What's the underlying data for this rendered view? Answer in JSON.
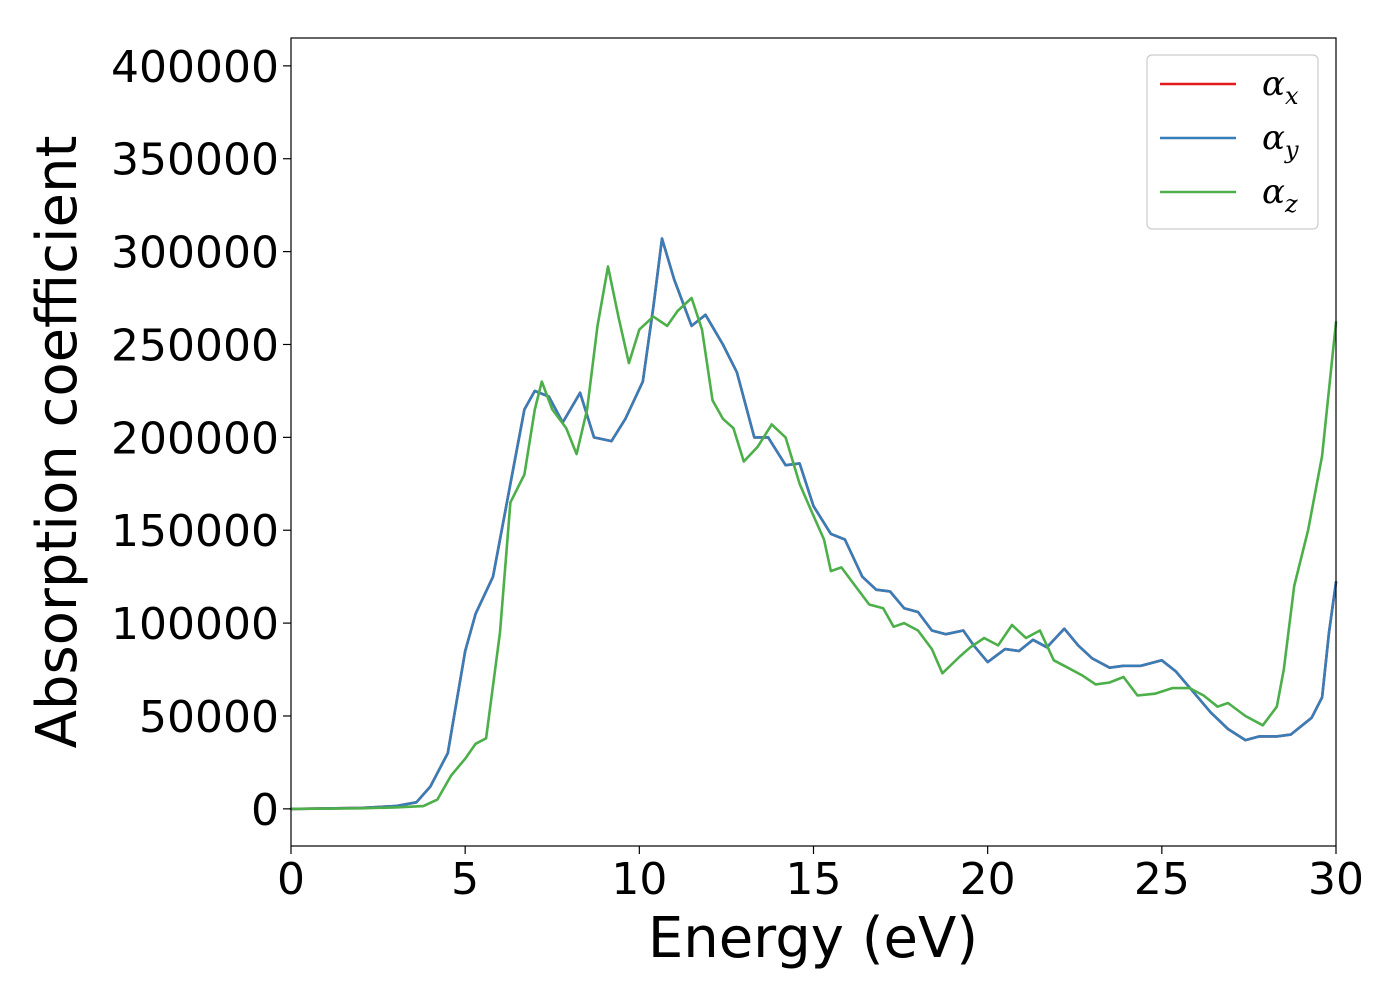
{
  "chart_data": {
    "type": "line",
    "xlabel": "Energy (eV)",
    "ylabel": "Absorption coefficient",
    "xlim": [
      0,
      30
    ],
    "ylim": [
      -20000,
      415000
    ],
    "xticks": [
      0,
      5,
      10,
      15,
      20,
      25,
      30
    ],
    "xtick_labels": [
      "0",
      "5",
      "10",
      "15",
      "20",
      "25",
      "30"
    ],
    "yticks": [
      0,
      50000,
      100000,
      150000,
      200000,
      250000,
      300000,
      350000,
      400000
    ],
    "ytick_labels": [
      "0",
      "50000",
      "100000",
      "150000",
      "200000",
      "250000",
      "300000",
      "350000",
      "400000"
    ],
    "grid": false,
    "legend_position": "top-right",
    "series": [
      {
        "name": "α",
        "subscript": "x",
        "color": "#e41a1c",
        "points": [
          [
            0,
            0
          ],
          [
            2,
            500
          ],
          [
            3,
            1500
          ],
          [
            3.6,
            3500
          ],
          [
            4,
            12000
          ],
          [
            4.5,
            30000
          ],
          [
            5,
            85000
          ],
          [
            5.3,
            105000
          ],
          [
            5.8,
            125000
          ],
          [
            6.3,
            175000
          ],
          [
            6.7,
            215000
          ],
          [
            7,
            225000
          ],
          [
            7.4,
            222000
          ],
          [
            7.8,
            208000
          ],
          [
            8.3,
            224000
          ],
          [
            8.7,
            200000
          ],
          [
            9.2,
            198000
          ],
          [
            9.6,
            210000
          ],
          [
            10.1,
            230000
          ],
          [
            10.4,
            270000
          ],
          [
            10.65,
            307000
          ],
          [
            11,
            285000
          ],
          [
            11.5,
            260000
          ],
          [
            11.9,
            266000
          ],
          [
            12.4,
            250000
          ],
          [
            12.8,
            235000
          ],
          [
            13.3,
            200000
          ],
          [
            13.7,
            200000
          ],
          [
            14.2,
            185000
          ],
          [
            14.6,
            186000
          ],
          [
            15,
            163000
          ],
          [
            15.5,
            148000
          ],
          [
            15.9,
            145000
          ],
          [
            16.4,
            125000
          ],
          [
            16.8,
            118000
          ],
          [
            17.2,
            117000
          ],
          [
            17.6,
            108000
          ],
          [
            18,
            106000
          ],
          [
            18.4,
            96000
          ],
          [
            18.8,
            94000
          ],
          [
            19.3,
            96000
          ],
          [
            19.6,
            88000
          ],
          [
            20,
            79000
          ],
          [
            20.5,
            86000
          ],
          [
            20.9,
            85000
          ],
          [
            21.3,
            91000
          ],
          [
            21.7,
            87000
          ],
          [
            22.2,
            97000
          ],
          [
            22.6,
            88000
          ],
          [
            23,
            81000
          ],
          [
            23.5,
            76000
          ],
          [
            23.9,
            77000
          ],
          [
            24.4,
            77000
          ],
          [
            25,
            80000
          ],
          [
            25.4,
            74000
          ],
          [
            25.9,
            63000
          ],
          [
            26.4,
            52000
          ],
          [
            26.9,
            43000
          ],
          [
            27.4,
            37000
          ],
          [
            27.8,
            39000
          ],
          [
            28.3,
            39000
          ],
          [
            28.7,
            40000
          ],
          [
            29.3,
            49000
          ],
          [
            29.6,
            60000
          ],
          [
            29.8,
            95000
          ],
          [
            30,
            122000
          ]
        ]
      },
      {
        "name": "α",
        "subscript": "y",
        "color": "#377eb8",
        "points": [
          [
            0,
            0
          ],
          [
            2,
            500
          ],
          [
            3,
            1500
          ],
          [
            3.6,
            3500
          ],
          [
            4,
            12000
          ],
          [
            4.5,
            30000
          ],
          [
            5,
            85000
          ],
          [
            5.3,
            105000
          ],
          [
            5.8,
            125000
          ],
          [
            6.3,
            175000
          ],
          [
            6.7,
            215000
          ],
          [
            7,
            225000
          ],
          [
            7.4,
            222000
          ],
          [
            7.8,
            208000
          ],
          [
            8.3,
            224000
          ],
          [
            8.7,
            200000
          ],
          [
            9.2,
            198000
          ],
          [
            9.6,
            210000
          ],
          [
            10.1,
            230000
          ],
          [
            10.4,
            270000
          ],
          [
            10.65,
            307000
          ],
          [
            11,
            285000
          ],
          [
            11.5,
            260000
          ],
          [
            11.9,
            266000
          ],
          [
            12.4,
            250000
          ],
          [
            12.8,
            235000
          ],
          [
            13.3,
            200000
          ],
          [
            13.7,
            200000
          ],
          [
            14.2,
            185000
          ],
          [
            14.6,
            186000
          ],
          [
            15,
            163000
          ],
          [
            15.5,
            148000
          ],
          [
            15.9,
            145000
          ],
          [
            16.4,
            125000
          ],
          [
            16.8,
            118000
          ],
          [
            17.2,
            117000
          ],
          [
            17.6,
            108000
          ],
          [
            18,
            106000
          ],
          [
            18.4,
            96000
          ],
          [
            18.8,
            94000
          ],
          [
            19.3,
            96000
          ],
          [
            19.6,
            88000
          ],
          [
            20,
            79000
          ],
          [
            20.5,
            86000
          ],
          [
            20.9,
            85000
          ],
          [
            21.3,
            91000
          ],
          [
            21.7,
            87000
          ],
          [
            22.2,
            97000
          ],
          [
            22.6,
            88000
          ],
          [
            23,
            81000
          ],
          [
            23.5,
            76000
          ],
          [
            23.9,
            77000
          ],
          [
            24.4,
            77000
          ],
          [
            25,
            80000
          ],
          [
            25.4,
            74000
          ],
          [
            25.9,
            63000
          ],
          [
            26.4,
            52000
          ],
          [
            26.9,
            43000
          ],
          [
            27.4,
            37000
          ],
          [
            27.8,
            39000
          ],
          [
            28.3,
            39000
          ],
          [
            28.7,
            40000
          ],
          [
            29.3,
            49000
          ],
          [
            29.6,
            60000
          ],
          [
            29.8,
            95000
          ],
          [
            30,
            122000
          ]
        ]
      },
      {
        "name": "α",
        "subscript": "z",
        "color": "#4daf4a",
        "points": [
          [
            0,
            0
          ],
          [
            2,
            300
          ],
          [
            3,
            800
          ],
          [
            3.8,
            1500
          ],
          [
            4.2,
            5000
          ],
          [
            4.6,
            18000
          ],
          [
            5,
            27000
          ],
          [
            5.3,
            35000
          ],
          [
            5.6,
            38000
          ],
          [
            6,
            95000
          ],
          [
            6.3,
            165000
          ],
          [
            6.7,
            180000
          ],
          [
            7,
            215000
          ],
          [
            7.2,
            230000
          ],
          [
            7.5,
            215000
          ],
          [
            7.9,
            205000
          ],
          [
            8.2,
            191000
          ],
          [
            8.5,
            215000
          ],
          [
            8.8,
            260000
          ],
          [
            9.1,
            292000
          ],
          [
            9.4,
            265000
          ],
          [
            9.7,
            240000
          ],
          [
            10,
            258000
          ],
          [
            10.4,
            265000
          ],
          [
            10.8,
            260000
          ],
          [
            11.1,
            268000
          ],
          [
            11.5,
            275000
          ],
          [
            11.8,
            258000
          ],
          [
            12.1,
            220000
          ],
          [
            12.4,
            210000
          ],
          [
            12.7,
            205000
          ],
          [
            13,
            187000
          ],
          [
            13.4,
            195000
          ],
          [
            13.8,
            207000
          ],
          [
            14.2,
            200000
          ],
          [
            14.6,
            175000
          ],
          [
            14.9,
            162000
          ],
          [
            15.3,
            145000
          ],
          [
            15.5,
            128000
          ],
          [
            15.8,
            130000
          ],
          [
            16.2,
            120000
          ],
          [
            16.6,
            110000
          ],
          [
            17,
            108000
          ],
          [
            17.3,
            98000
          ],
          [
            17.6,
            100000
          ],
          [
            18,
            96000
          ],
          [
            18.4,
            86000
          ],
          [
            18.7,
            73000
          ],
          [
            19.2,
            82000
          ],
          [
            19.5,
            87000
          ],
          [
            19.9,
            92000
          ],
          [
            20.3,
            88000
          ],
          [
            20.7,
            99000
          ],
          [
            21.1,
            92000
          ],
          [
            21.5,
            96000
          ],
          [
            21.9,
            80000
          ],
          [
            22.3,
            76000
          ],
          [
            22.7,
            72000
          ],
          [
            23.1,
            67000
          ],
          [
            23.5,
            68000
          ],
          [
            23.9,
            71000
          ],
          [
            24.3,
            61000
          ],
          [
            24.8,
            62000
          ],
          [
            25.3,
            65000
          ],
          [
            25.8,
            65000
          ],
          [
            26.2,
            61000
          ],
          [
            26.6,
            55000
          ],
          [
            26.9,
            57000
          ],
          [
            27.4,
            50000
          ],
          [
            27.9,
            45000
          ],
          [
            28.3,
            55000
          ],
          [
            28.5,
            75000
          ],
          [
            28.8,
            120000
          ],
          [
            29.2,
            150000
          ],
          [
            29.6,
            190000
          ],
          [
            30,
            262000
          ]
        ]
      }
    ]
  }
}
